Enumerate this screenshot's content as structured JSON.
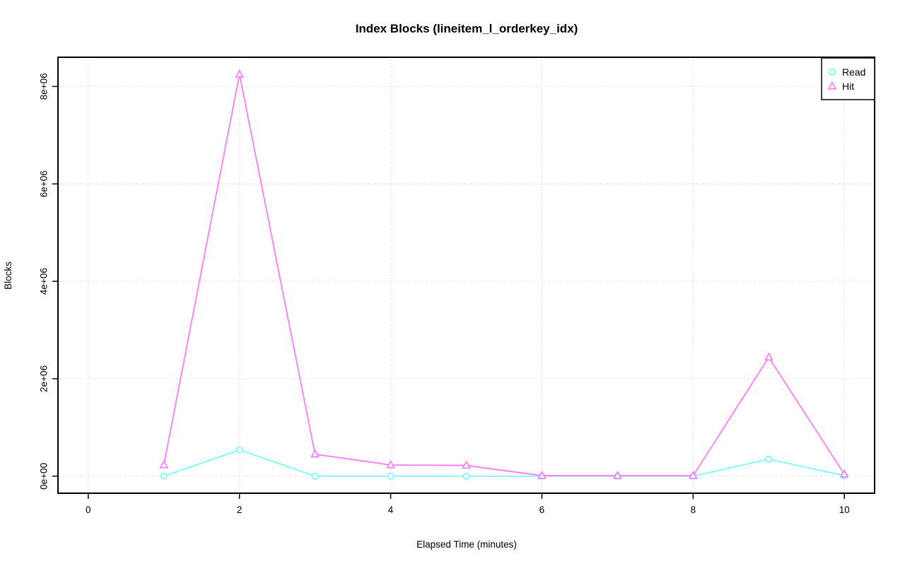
{
  "chart_data": {
    "type": "line",
    "title": "Index Blocks (lineitem_l_orderkey_idx)",
    "xlabel": "Elapsed Time (minutes)",
    "ylabel": "Blocks",
    "x": [
      1,
      2,
      3,
      4,
      5,
      6,
      7,
      8,
      9,
      10
    ],
    "series": [
      {
        "name": "Read",
        "marker": "circle",
        "color": "#7DF8F8",
        "values": [
          0,
          540000,
          0,
          0,
          0,
          0,
          0,
          0,
          350000,
          10000
        ]
      },
      {
        "name": "Hit",
        "marker": "triangle",
        "color": "#FA7CFA",
        "values": [
          230000,
          8250000,
          450000,
          230000,
          220000,
          10000,
          10000,
          10000,
          2440000,
          40000
        ]
      }
    ],
    "x_ticks": {
      "values": [
        0,
        2,
        4,
        6,
        8,
        10
      ],
      "labels": [
        "0",
        "2",
        "4",
        "6",
        "8",
        "10"
      ]
    },
    "y_ticks": {
      "values": [
        0,
        2000000,
        4000000,
        6000000,
        8000000
      ],
      "labels": [
        "0e+00",
        "2e+06",
        "4e+06",
        "6e+06",
        "8e+06"
      ]
    },
    "xlim": [
      -0.4,
      10.4
    ],
    "ylim": [
      -350000,
      8600000
    ],
    "grid": true,
    "grid_color": "#C9C9C9",
    "box_color": "#000000",
    "legend": {
      "position": "top-right",
      "entries": [
        "Read",
        "Hit"
      ]
    }
  }
}
